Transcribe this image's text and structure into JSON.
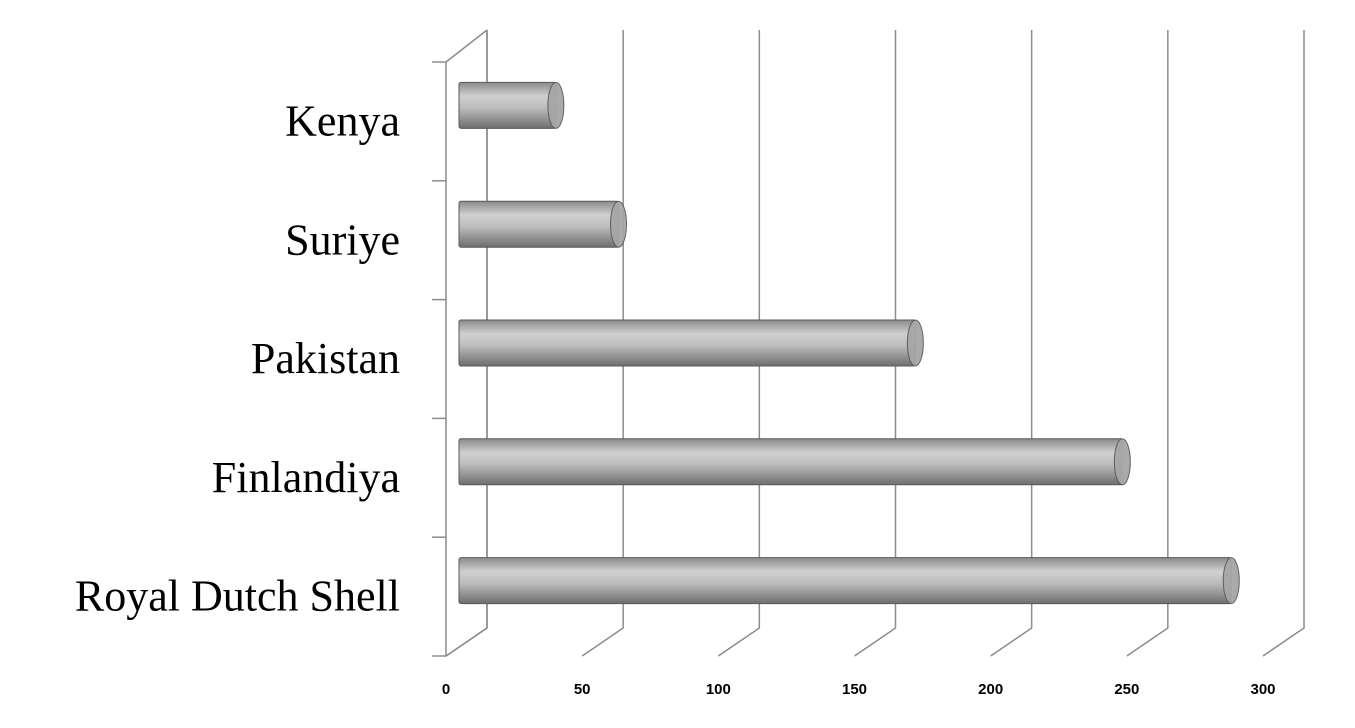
{
  "chart_data": {
    "type": "bar",
    "orientation": "horizontal",
    "categories": [
      "Kenya",
      "Suriye",
      "Pakistan",
      "Finlandiya",
      "Royal Dutch Shell"
    ],
    "values": [
      33,
      56,
      165,
      241,
      281
    ],
    "color": "#a6a6a6",
    "xlim": [
      0,
      300
    ],
    "xticks": [
      0,
      50,
      100,
      150,
      200,
      250,
      300
    ],
    "grid": true
  }
}
